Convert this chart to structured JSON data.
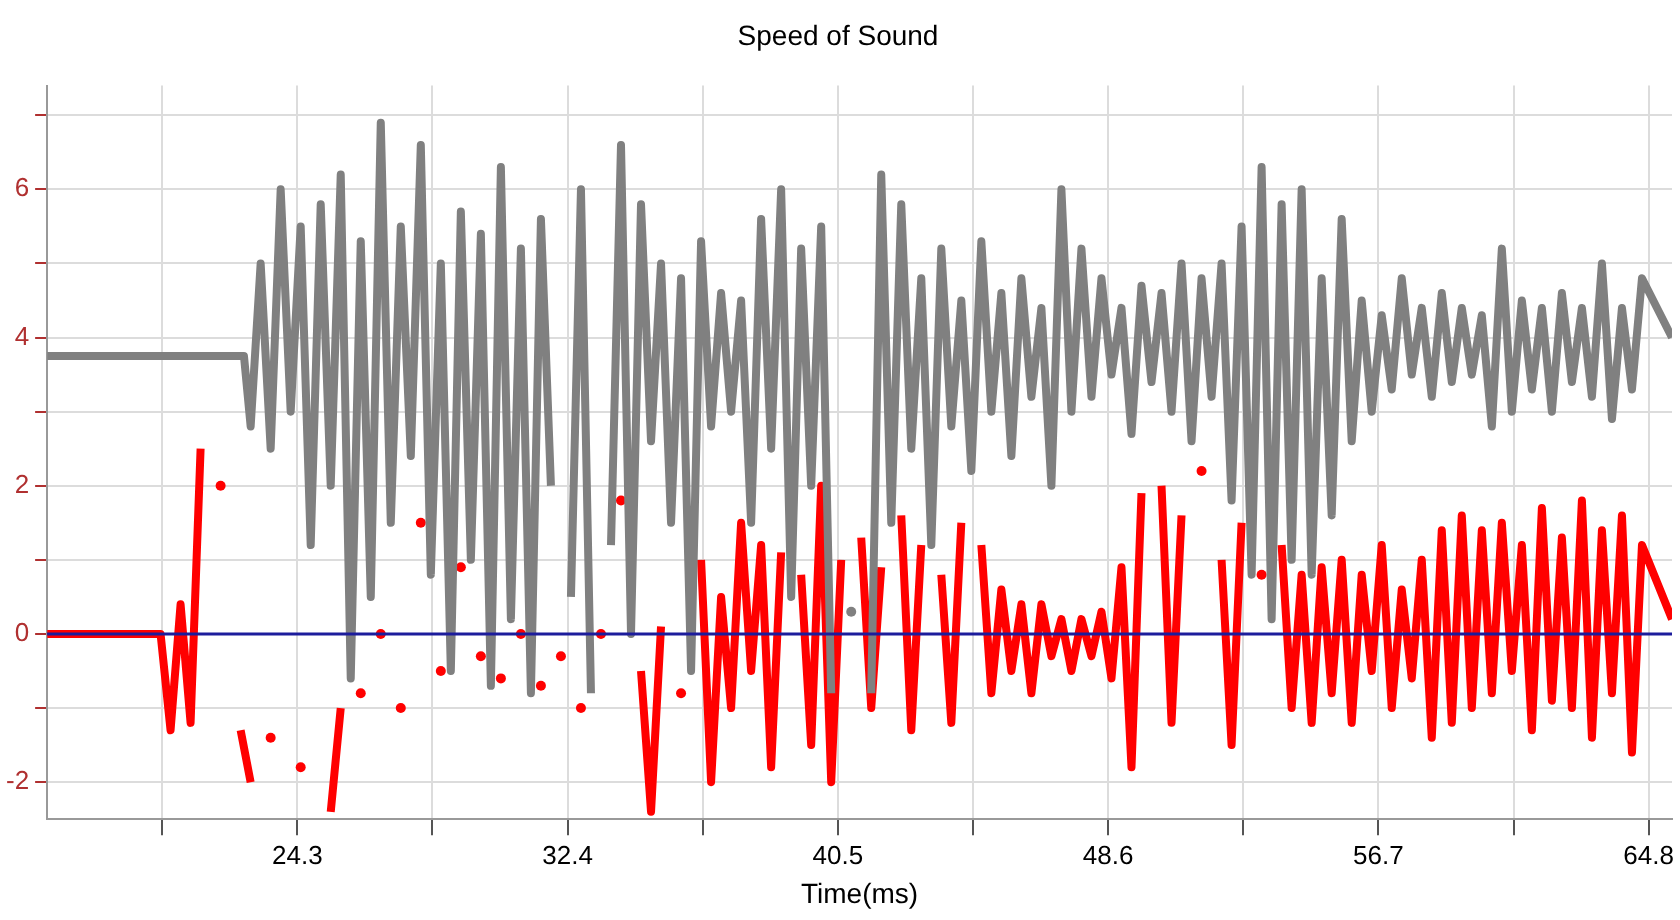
{
  "chart_data": {
    "type": "line",
    "title": "Speed of Sound",
    "xlabel": "Time(ms)",
    "xlim": [
      16.8,
      65.5
    ],
    "xticks": [
      {
        "value": 20.25,
        "label": null
      },
      24.3,
      {
        "value": 28.35,
        "label": null
      },
      32.4,
      {
        "value": 36.45,
        "label": null
      },
      40.5,
      {
        "value": 44.55,
        "label": null
      },
      48.6,
      {
        "value": 52.65,
        "label": null
      },
      56.7,
      {
        "value": 60.75,
        "label": null
      },
      64.8
    ],
    "ylim": [
      -2.5,
      7.4
    ],
    "yticks": [
      -2,
      {
        "value": -1,
        "label": null
      },
      0,
      {
        "value": 1,
        "label": null
      },
      2,
      {
        "value": 3,
        "label": null
      },
      4,
      {
        "value": 5,
        "label": null
      },
      6,
      {
        "value": 7,
        "label": null
      }
    ],
    "grid": true,
    "legend": false,
    "marker": "none",
    "line_style": "solid",
    "ref_lines": [
      {
        "axis": "y",
        "value": 0,
        "color": "#1c1c9c"
      }
    ],
    "series": [
      {
        "color": "#808080",
        "x": [
          16.8,
          22.7,
          22.9,
          23.2,
          23.5,
          23.8,
          24.1,
          24.4,
          24.7,
          25.0,
          25.3,
          25.6,
          25.9,
          26.2,
          26.5,
          26.8,
          27.1,
          27.4,
          27.7,
          28.0,
          28.3,
          28.6,
          28.9,
          29.2,
          29.5,
          29.8,
          30.1,
          30.4,
          30.7,
          31.0,
          31.3,
          31.6,
          31.9,
          32.2,
          32.5,
          32.8,
          33.1,
          33.4,
          33.7,
          34.0,
          34.3,
          34.6,
          34.9,
          35.2,
          35.5,
          35.8,
          36.1,
          36.4,
          36.7,
          37.0,
          37.3,
          37.6,
          37.9,
          38.2,
          38.5,
          38.8,
          39.1,
          39.4,
          39.7,
          40.0,
          40.3,
          40.6,
          40.9,
          41.2,
          41.5,
          41.8,
          42.1,
          42.4,
          42.7,
          43.0,
          43.3,
          43.6,
          43.9,
          44.2,
          44.5,
          44.8,
          45.1,
          45.4,
          45.7,
          46.0,
          46.3,
          46.6,
          46.9,
          47.2,
          47.5,
          47.8,
          48.1,
          48.4,
          48.7,
          49.0,
          49.3,
          49.6,
          49.9,
          50.2,
          50.5,
          50.8,
          51.1,
          51.4,
          51.7,
          52.0,
          52.3,
          52.6,
          52.9,
          53.2,
          53.5,
          53.8,
          54.1,
          54.4,
          54.7,
          55.0,
          55.3,
          55.6,
          55.9,
          56.2,
          56.5,
          56.8,
          57.1,
          57.4,
          57.7,
          58.0,
          58.3,
          58.6,
          58.9,
          59.2,
          59.5,
          59.8,
          60.1,
          60.4,
          60.7,
          61.0,
          61.3,
          61.6,
          61.9,
          62.2,
          62.5,
          62.8,
          63.1,
          63.4,
          63.7,
          64.0,
          64.3,
          64.6,
          65.5
        ],
        "values": [
          3.75,
          3.75,
          2.8,
          5.0,
          2.5,
          6.0,
          3.0,
          5.5,
          1.2,
          5.8,
          2.0,
          6.2,
          -0.6,
          5.3,
          0.5,
          6.9,
          1.5,
          5.5,
          2.4,
          6.6,
          0.8,
          5.0,
          -0.5,
          5.7,
          1.0,
          5.4,
          -0.7,
          6.3,
          0.2,
          5.2,
          -0.8,
          5.6,
          2.0,
          null,
          0.5,
          6.0,
          -0.8,
          null,
          1.2,
          6.6,
          0.0,
          5.8,
          2.6,
          5.0,
          1.5,
          4.8,
          -0.5,
          5.3,
          2.8,
          4.6,
          3.0,
          4.5,
          1.5,
          5.6,
          2.5,
          6.0,
          0.5,
          5.2,
          2.0,
          5.5,
          -0.8,
          null,
          0.3,
          null,
          -0.8,
          6.2,
          1.5,
          5.8,
          2.5,
          4.8,
          1.2,
          5.2,
          2.8,
          4.5,
          2.2,
          5.3,
          3.0,
          4.6,
          2.4,
          4.8,
          3.2,
          4.4,
          2.0,
          6.0,
          3.0,
          5.2,
          3.2,
          4.8,
          3.5,
          4.4,
          2.7,
          4.7,
          3.4,
          4.6,
          3.0,
          5.0,
          2.6,
          4.8,
          3.2,
          5.0,
          1.8,
          5.5,
          0.8,
          6.3,
          0.2,
          5.8,
          1.0,
          6.0,
          0.8,
          4.8,
          1.6,
          5.6,
          2.6,
          4.5,
          3.0,
          4.3,
          3.3,
          4.8,
          3.5,
          4.4,
          3.2,
          4.6,
          3.4,
          4.4,
          3.5,
          4.3,
          2.8,
          5.2,
          3.0,
          4.5,
          3.3,
          4.4,
          3.0,
          4.6,
          3.4,
          4.4,
          3.2,
          5.0,
          2.9,
          4.4,
          3.3,
          4.8,
          4.0
        ]
      },
      {
        "color": "#ff0000",
        "x": [
          16.8,
          20.2,
          20.5,
          20.8,
          21.1,
          21.4,
          21.7,
          22.0,
          22.3,
          22.6,
          22.9,
          23.2,
          23.5,
          23.8,
          24.1,
          24.4,
          24.7,
          25.0,
          25.3,
          25.6,
          25.9,
          26.2,
          26.5,
          26.8,
          27.1,
          27.4,
          27.7,
          28.0,
          28.3,
          28.6,
          28.9,
          29.2,
          29.5,
          29.8,
          30.1,
          30.4,
          30.7,
          31.0,
          31.3,
          31.6,
          31.9,
          32.2,
          32.5,
          32.8,
          33.1,
          33.4,
          33.7,
          34.0,
          34.3,
          34.6,
          34.9,
          35.2,
          35.5,
          35.8,
          36.1,
          36.4,
          36.7,
          37.0,
          37.3,
          37.6,
          37.9,
          38.2,
          38.5,
          38.8,
          39.1,
          39.4,
          39.7,
          40.0,
          40.3,
          40.6,
          40.9,
          41.2,
          41.5,
          41.8,
          42.1,
          42.4,
          42.7,
          43.0,
          43.3,
          43.6,
          43.9,
          44.2,
          44.5,
          44.8,
          45.1,
          45.4,
          45.7,
          46.0,
          46.3,
          46.6,
          46.9,
          47.2,
          47.5,
          47.8,
          48.1,
          48.4,
          48.7,
          49.0,
          49.3,
          49.6,
          49.9,
          50.2,
          50.5,
          50.8,
          51.1,
          51.4,
          51.7,
          52.0,
          52.3,
          52.6,
          52.9,
          53.2,
          53.5,
          53.8,
          54.1,
          54.4,
          54.7,
          55.0,
          55.3,
          55.6,
          55.9,
          56.2,
          56.5,
          56.8,
          57.1,
          57.4,
          57.7,
          58.0,
          58.3,
          58.6,
          58.9,
          59.2,
          59.5,
          59.8,
          60.1,
          60.4,
          60.7,
          61.0,
          61.3,
          61.6,
          61.9,
          62.2,
          62.5,
          62.8,
          63.1,
          63.4,
          63.7,
          64.0,
          64.3,
          64.6,
          65.5
        ],
        "values": [
          0,
          0,
          -1.3,
          0.4,
          -1.2,
          2.5,
          null,
          2.0,
          null,
          -1.3,
          -2.0,
          null,
          -1.4,
          null,
          null,
          -1.8,
          null,
          null,
          -2.4,
          -1.0,
          null,
          -0.8,
          null,
          0.0,
          null,
          -1.0,
          null,
          1.5,
          null,
          -0.5,
          null,
          0.9,
          null,
          -0.3,
          null,
          -0.6,
          null,
          0.0,
          null,
          -0.7,
          null,
          -0.3,
          null,
          -1.0,
          null,
          0.0,
          null,
          1.8,
          null,
          -0.5,
          -2.4,
          0.1,
          null,
          -0.8,
          null,
          1.0,
          -2.0,
          0.5,
          -1.0,
          1.5,
          -0.5,
          1.2,
          -1.8,
          1.1,
          null,
          0.8,
          -1.5,
          2.0,
          -2.0,
          1.0,
          null,
          1.3,
          -1.0,
          0.9,
          null,
          1.6,
          -1.3,
          1.2,
          null,
          0.8,
          -1.2,
          1.5,
          null,
          1.2,
          -0.8,
          0.6,
          -0.5,
          0.4,
          -0.8,
          0.4,
          -0.3,
          0.2,
          -0.5,
          0.2,
          -0.3,
          0.3,
          -0.6,
          0.9,
          -1.8,
          1.9,
          null,
          2.0,
          -1.2,
          1.6,
          null,
          2.2,
          null,
          1.0,
          -1.5,
          1.5,
          null,
          0.8,
          null,
          1.2,
          -1.0,
          0.8,
          -1.2,
          0.9,
          -0.8,
          1.0,
          -1.2,
          0.8,
          -0.5,
          1.2,
          -1.0,
          0.6,
          -0.6,
          1.0,
          -1.4,
          1.4,
          -1.2,
          1.6,
          -1.0,
          1.4,
          -0.8,
          1.5,
          -0.5,
          1.2,
          -1.3,
          1.7,
          -0.9,
          1.3,
          -1.0,
          1.8,
          -1.4,
          1.4,
          -0.8,
          1.6,
          -1.6,
          1.2,
          0.2
        ]
      }
    ]
  }
}
